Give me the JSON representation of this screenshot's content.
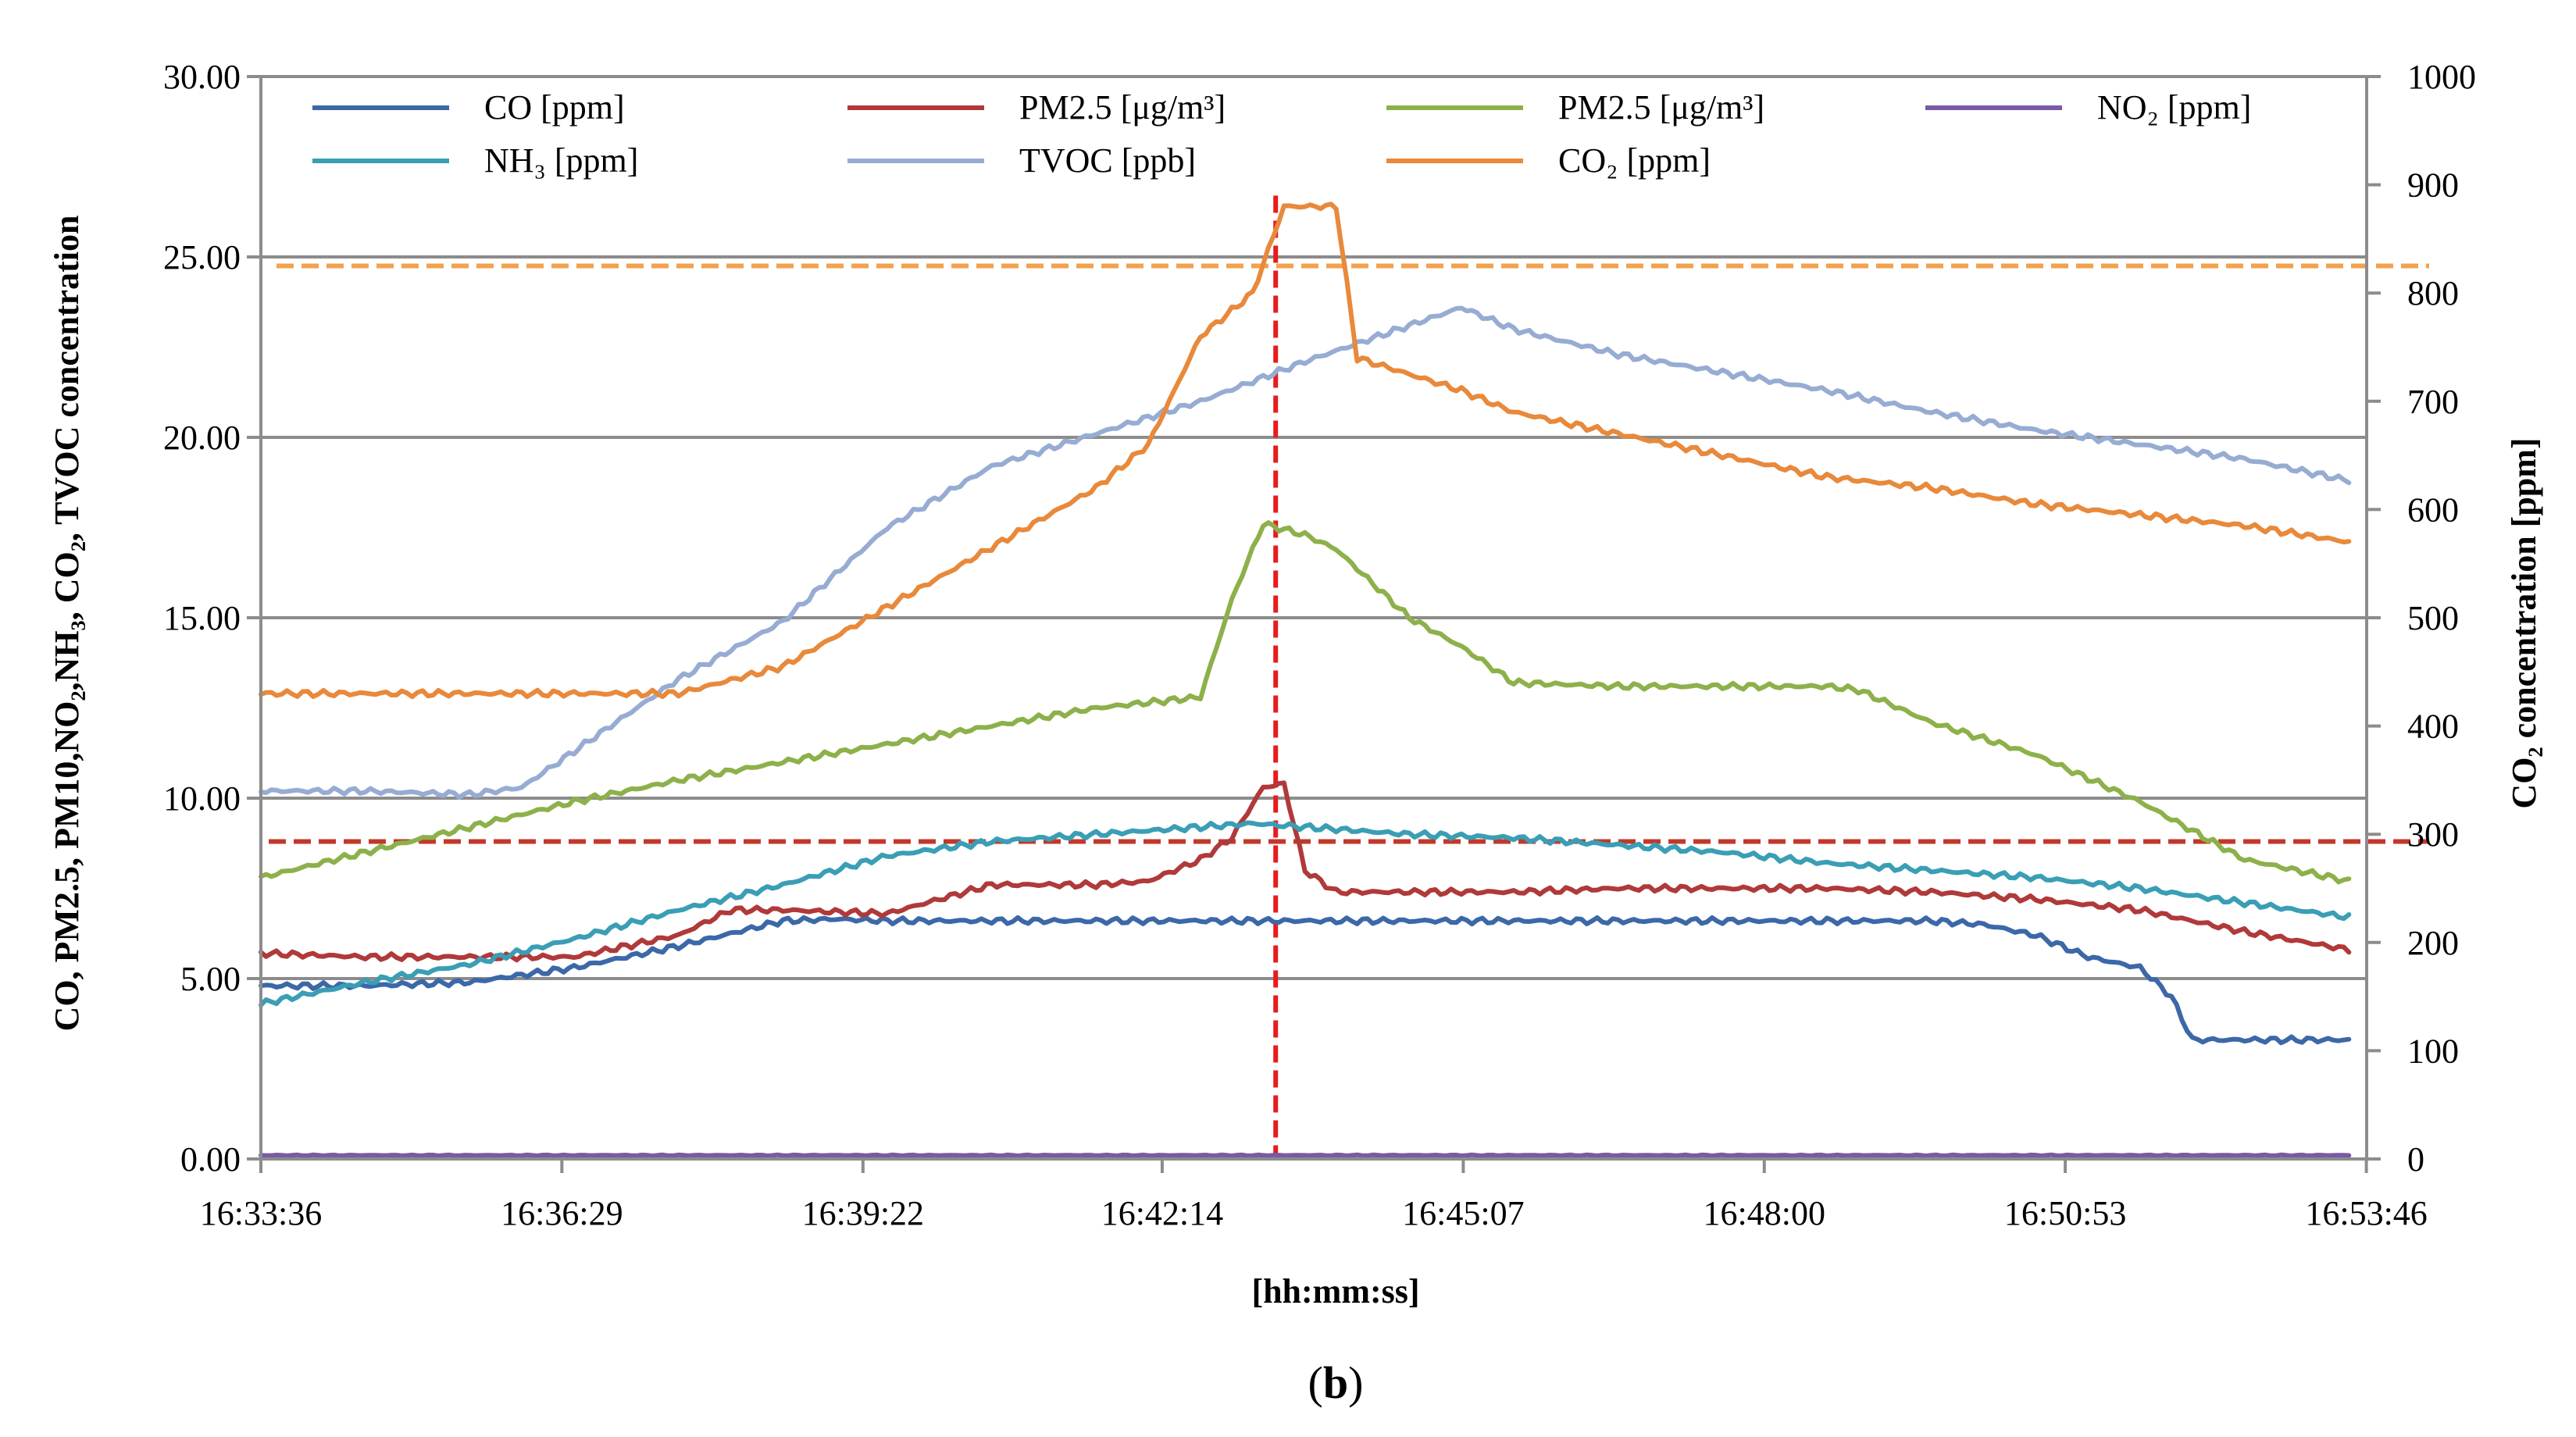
{
  "chart_data": {
    "type": "line",
    "title": "",
    "caption": "(b)",
    "caption_letter": "b",
    "caption_open": "(",
    "caption_close": ")",
    "xlabel": "[hh:mm:ss]",
    "ylabel_left": "CO, PM2.5, PM10,NO₂,NH₃, CO₂, TVOC concentration",
    "ylabel_right": "CO₂ concentration [ppm]",
    "x_unit": "minutes since 16:33:36",
    "xlim": [
      0,
      20.17
    ],
    "x_ticks": [
      0,
      2.883,
      5.767,
      8.633,
      11.517,
      14.4,
      17.283,
      20.167
    ],
    "x_tick_labels": [
      "16:33:36",
      "16:36:29",
      "16:39:22",
      "16:42:14",
      "16:45:07",
      "16:48:00",
      "16:50:53",
      "16:53:46"
    ],
    "ylim_left": [
      0,
      30
    ],
    "y_ticks_left": [
      0,
      5,
      10,
      15,
      20,
      25,
      30
    ],
    "y_tick_labels_left": [
      "0.00",
      "5.00",
      "10.00",
      "15.00",
      "20.00",
      "25.00",
      "30.00"
    ],
    "ylim_right": [
      0,
      1000
    ],
    "y_ticks_right": [
      0,
      100,
      200,
      300,
      400,
      500,
      600,
      700,
      800,
      900,
      1000
    ],
    "y_tick_labels_right": [
      "0",
      "100",
      "200",
      "300",
      "400",
      "500",
      "600",
      "700",
      "800",
      "900",
      "1000"
    ],
    "grid": "horizontal",
    "legend_position": "top",
    "series": [
      {
        "name": "CO [ppm]",
        "axis": "left",
        "color": "#3c68a8",
        "x": [
          0,
          1,
          2,
          3,
          4,
          5,
          5.5,
          6,
          7,
          8,
          9,
          10,
          11,
          12,
          13,
          14,
          15,
          16,
          16.5,
          17,
          17.5,
          18,
          18.3,
          18.5,
          19,
          20
        ],
        "y": [
          4.8,
          4.8,
          4.9,
          5.3,
          5.9,
          6.6,
          6.65,
          6.6,
          6.6,
          6.6,
          6.6,
          6.6,
          6.6,
          6.6,
          6.6,
          6.6,
          6.6,
          6.6,
          6.5,
          6.2,
          5.6,
          5.3,
          4.5,
          3.3,
          3.3,
          3.3
        ]
      },
      {
        "name": "PM2.5 [μg/m³]",
        "axis": "left",
        "color": "#b0393a",
        "x": [
          0,
          1,
          2,
          3,
          4,
          4.5,
          5,
          6,
          7,
          8,
          8.5,
          9,
          9.3,
          9.6,
          9.8,
          10,
          10.3,
          11,
          12,
          13,
          14,
          15,
          16,
          17,
          18,
          19,
          20
        ],
        "y": [
          5.7,
          5.6,
          5.6,
          5.6,
          6.2,
          6.9,
          6.9,
          6.8,
          7.6,
          7.6,
          7.7,
          8.3,
          8.9,
          10.3,
          10.4,
          8.0,
          7.4,
          7.4,
          7.4,
          7.5,
          7.5,
          7.5,
          7.4,
          7.2,
          6.9,
          6.3,
          5.8
        ]
      },
      {
        "name": "PM2.5 [μg/m³]",
        "axis": "left",
        "color": "#8db14a",
        "x": [
          0,
          1,
          2,
          3,
          4,
          5,
          6,
          7,
          8,
          9,
          9.3,
          9.6,
          10,
          10.3,
          11,
          11.5,
          12,
          13,
          14,
          15,
          15.3,
          16,
          17,
          18,
          19,
          20
        ],
        "y": [
          7.8,
          8.5,
          9.2,
          9.9,
          10.5,
          11.0,
          11.5,
          12.0,
          12.5,
          12.8,
          15.5,
          17.6,
          17.3,
          16.9,
          15.0,
          14.2,
          13.2,
          13.1,
          13.1,
          13.1,
          13.0,
          12.1,
          11.2,
          9.9,
          8.3,
          7.7
        ]
      },
      {
        "name": "NO₂ [ppm]",
        "axis": "left",
        "color": "#7a5aa3",
        "x": [
          0,
          5,
          10,
          15,
          20
        ],
        "y": [
          0.1,
          0.1,
          0.1,
          0.1,
          0.1
        ]
      },
      {
        "name": "NH₃ [ppm]",
        "axis": "left",
        "color": "#3a9eb5",
        "x": [
          0,
          1,
          2,
          3,
          4,
          5,
          6,
          7,
          8,
          9,
          9.5,
          10,
          11,
          12,
          13,
          14,
          15,
          16,
          17,
          18,
          19,
          20
        ],
        "y": [
          4.3,
          4.9,
          5.4,
          6.1,
          6.9,
          7.6,
          8.4,
          8.8,
          9.0,
          9.2,
          9.3,
          9.2,
          9.0,
          8.9,
          8.7,
          8.5,
          8.2,
          8.0,
          7.8,
          7.5,
          7.1,
          6.7
        ]
      },
      {
        "name": "TVOC [ppb]",
        "axis": "left",
        "color": "#97acd3",
        "x": [
          0,
          1,
          2,
          2.5,
          3,
          4,
          5,
          6,
          7,
          8,
          9,
          10,
          11,
          11.5,
          12,
          13,
          14,
          15,
          16,
          17,
          18,
          19,
          20
        ],
        "y": [
          10.2,
          10.2,
          10.1,
          10.3,
          11.3,
          13.3,
          14.9,
          17.5,
          19.2,
          20.1,
          21.0,
          22.1,
          23.1,
          23.6,
          23.0,
          22.3,
          21.8,
          21.3,
          20.7,
          20.2,
          19.8,
          19.4,
          18.8
        ]
      },
      {
        "name": "CO₂ [ppm]",
        "axis": "right",
        "color": "#e8893b",
        "x": [
          0,
          1,
          2,
          3,
          4,
          5,
          6,
          7,
          8,
          8.5,
          9,
          9.5,
          9.8,
          10.3,
          10.5,
          11,
          11.5,
          12,
          13,
          14,
          15,
          16,
          17,
          18,
          19,
          20
        ],
        "y": [
          430,
          430,
          430,
          430,
          430,
          455,
          510,
          565,
          620,
          660,
          760,
          800,
          880,
          880,
          740,
          725,
          710,
          690,
          670,
          650,
          630,
          620,
          605,
          595,
          585,
          570
        ]
      }
    ],
    "reference_lines": [
      {
        "axis": "right",
        "value": 825,
        "color": "#f2a24e",
        "style": "dashed"
      },
      {
        "axis": "left",
        "value": 8.8,
        "color": "#c0392b",
        "style": "dashed"
      },
      {
        "axis": "x",
        "value": 9.72,
        "color": "#e81c1c",
        "style": "dashed"
      }
    ]
  }
}
